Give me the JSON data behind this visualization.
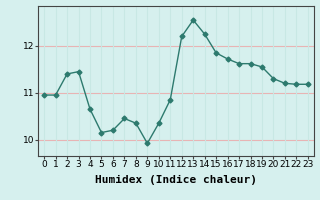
{
  "x": [
    0,
    1,
    2,
    3,
    4,
    5,
    6,
    7,
    8,
    9,
    10,
    11,
    12,
    13,
    14,
    15,
    16,
    17,
    18,
    19,
    20,
    21,
    22,
    23
  ],
  "y": [
    10.95,
    10.95,
    11.4,
    11.45,
    10.65,
    10.15,
    10.2,
    10.45,
    10.35,
    9.92,
    10.35,
    10.85,
    12.2,
    12.55,
    12.25,
    11.85,
    11.72,
    11.62,
    11.62,
    11.55,
    11.3,
    11.2,
    11.18,
    11.18
  ],
  "line_color": "#2d7a6e",
  "marker": "D",
  "marker_size": 2.5,
  "bg_color": "#d6f0ee",
  "grid_color_h": "#e8b4b4",
  "grid_color_v": "#c8e8e4",
  "xlabel": "Humidex (Indice chaleur)",
  "ylim": [
    9.65,
    12.85
  ],
  "xlim": [
    -0.5,
    23.5
  ],
  "yticks": [
    10,
    11,
    12
  ],
  "xticks": [
    0,
    1,
    2,
    3,
    4,
    5,
    6,
    7,
    8,
    9,
    10,
    11,
    12,
    13,
    14,
    15,
    16,
    17,
    18,
    19,
    20,
    21,
    22,
    23
  ],
  "tick_fontsize": 6.5,
  "xlabel_fontsize": 8,
  "spine_color": "#444444",
  "line_width": 1.0
}
